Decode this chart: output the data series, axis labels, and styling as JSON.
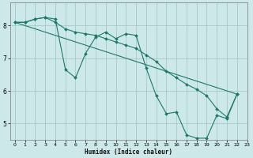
{
  "xlabel": "Humidex (Indice chaleur)",
  "xlim": [
    -0.5,
    23
  ],
  "ylim": [
    4.5,
    8.7
  ],
  "xticks": [
    0,
    1,
    2,
    3,
    4,
    5,
    6,
    7,
    8,
    9,
    10,
    11,
    12,
    13,
    14,
    15,
    16,
    17,
    18,
    19,
    20,
    21,
    22,
    23
  ],
  "yticks": [
    5,
    6,
    7,
    8
  ],
  "bg_color": "#cde8e8",
  "grid_color": "#a8c8c8",
  "line_color": "#1a7a6a",
  "series": [
    {
      "x": [
        0,
        1,
        2,
        3,
        4,
        5,
        6,
        7,
        8,
        9,
        10,
        11,
        12,
        13,
        14,
        15,
        16,
        17,
        18,
        19,
        20,
        21,
        22
      ],
      "y": [
        8.1,
        8.1,
        8.2,
        8.25,
        8.2,
        6.65,
        6.4,
        7.15,
        7.65,
        7.8,
        7.6,
        7.75,
        7.7,
        6.7,
        5.85,
        5.3,
        5.35,
        4.65,
        4.55,
        4.55,
        5.25,
        5.15,
        5.9
      ]
    },
    {
      "x": [
        0,
        22
      ],
      "y": [
        8.1,
        5.9
      ]
    },
    {
      "x": [
        0,
        1,
        2,
        3,
        4,
        5,
        6,
        7,
        8,
        9,
        10,
        11,
        12,
        13,
        14,
        15,
        16,
        17,
        18,
        19,
        20,
        21,
        22
      ],
      "y": [
        8.1,
        8.1,
        8.2,
        8.25,
        8.1,
        7.9,
        7.8,
        7.75,
        7.7,
        7.6,
        7.5,
        7.4,
        7.3,
        7.1,
        6.9,
        6.6,
        6.4,
        6.2,
        6.05,
        5.85,
        5.45,
        5.2,
        5.9
      ]
    }
  ]
}
